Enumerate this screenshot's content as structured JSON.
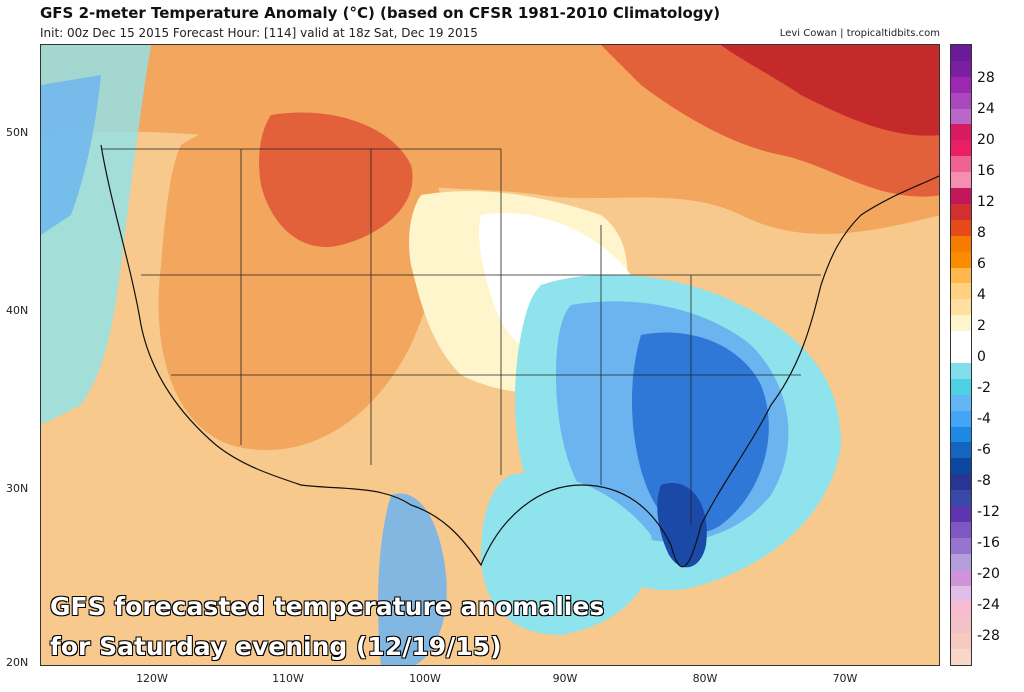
{
  "header": {
    "title": "GFS 2-meter Temperature Anomaly (°C) (based on CFSR 1981-2010 Climatology)",
    "subtitle": "Init: 00z Dec 15 2015   Forecast Hour: [114]   valid at 18z Sat, Dec 19 2015",
    "credit": "Levi Cowan | tropicaltidbits.com"
  },
  "caption": {
    "line1": "GFS forecasted temperature anomalies",
    "line2": "for Saturday evening (12/19/15)"
  },
  "axes": {
    "lat_labels": [
      "50N",
      "40N",
      "30N",
      "20N"
    ],
    "lon_labels": [
      "120W",
      "110W",
      "100W",
      "90W",
      "80W",
      "70W"
    ]
  },
  "colorbar": {
    "labels": [
      "28",
      "24",
      "20",
      "16",
      "12",
      "8",
      "6",
      "4",
      "2",
      "0",
      "-2",
      "-4",
      "-6",
      "-8",
      "-12",
      "-16",
      "-20",
      "-24",
      "-28"
    ],
    "colors": [
      "#6a1b9a",
      "#7b1fa2",
      "#9c27b0",
      "#ab47bc",
      "#ba68c8",
      "#d81b60",
      "#e91e63",
      "#f06292",
      "#f48fb1",
      "#c2185b",
      "#d32f2f",
      "#e64a19",
      "#f57c00",
      "#fb8c00",
      "#ffb74d",
      "#ffd180",
      "#ffe0a0",
      "#fff5cc",
      "#ffffff",
      "#ffffff",
      "#80deea",
      "#4dd0e1",
      "#64b5f6",
      "#42a5f5",
      "#1e88e5",
      "#1565c0",
      "#0d47a1",
      "#283593",
      "#3949ab",
      "#5e35b1",
      "#7e57c2",
      "#9575cd",
      "#b39ddb",
      "#ce93d8",
      "#e1bee7",
      "#f8bbd0",
      "#f3c1c8",
      "#f5cbc0",
      "#f8d6c8"
    ]
  },
  "map_colors": {
    "ocean_warm": "#f8c98c",
    "warm_light": "#fde3a6",
    "warm_med": "#f3a65e",
    "warm_hot": "#e2603a",
    "warm_very_hot": "#c42a2a",
    "neutral": "#ffffff",
    "cool_light": "#8fe3ec",
    "cool_med": "#6cb4f0",
    "cool_dark": "#2f78d8",
    "cool_very_dark": "#1b49a8"
  }
}
